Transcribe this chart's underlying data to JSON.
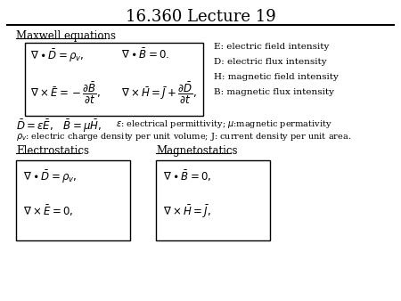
{
  "title": "16.360 Lecture 19",
  "section1_label": "Maxwell equations",
  "maxwell_eq_top_left": "$\\nabla \\bullet \\bar{D} = \\rho_v,$",
  "maxwell_eq_top_right": "$\\nabla \\bullet \\bar{B} = 0.$",
  "maxwell_eq_bot_left": "$\\nabla \\times \\bar{E} = -\\dfrac{\\partial \\bar{B}}{\\partial t},$",
  "maxwell_eq_bot_right": "$\\nabla \\times \\bar{H} = \\bar{J} + \\dfrac{\\partial \\bar{D}}{\\partial t},$",
  "legend": [
    "E: electric field intensity",
    "D: electric flux intensity",
    "H: magnetic field intensity",
    "B: magnetic flux intensity"
  ],
  "constitutive_eq": "$\\bar{D} = \\varepsilon\\bar{E},\\;\\;\\; \\bar{B} = \\mu\\bar{H},$",
  "constitutive_note1": "$\\varepsilon$: electrical permittivity; $\\mu$:magnetic permativity",
  "constitutive_note2": "$\\rho_v$: electric charge density per unit volume; J: current density per unit area.",
  "section2_label": "Electrostatics",
  "section3_label": "Magnetostatics",
  "es_eq1": "$\\nabla \\bullet \\bar{D} = \\rho_v,$",
  "es_eq2": "$\\nabla \\times \\bar{E} = 0,$",
  "ms_eq1": "$\\nabla \\bullet \\bar{B} = 0,$",
  "ms_eq2": "$\\nabla \\times \\bar{H} = \\bar{J},$",
  "title_fs": 13,
  "section_fs": 8.5,
  "eq_fs": 8.5,
  "legend_fs": 7.5,
  "note_fs": 7.0
}
